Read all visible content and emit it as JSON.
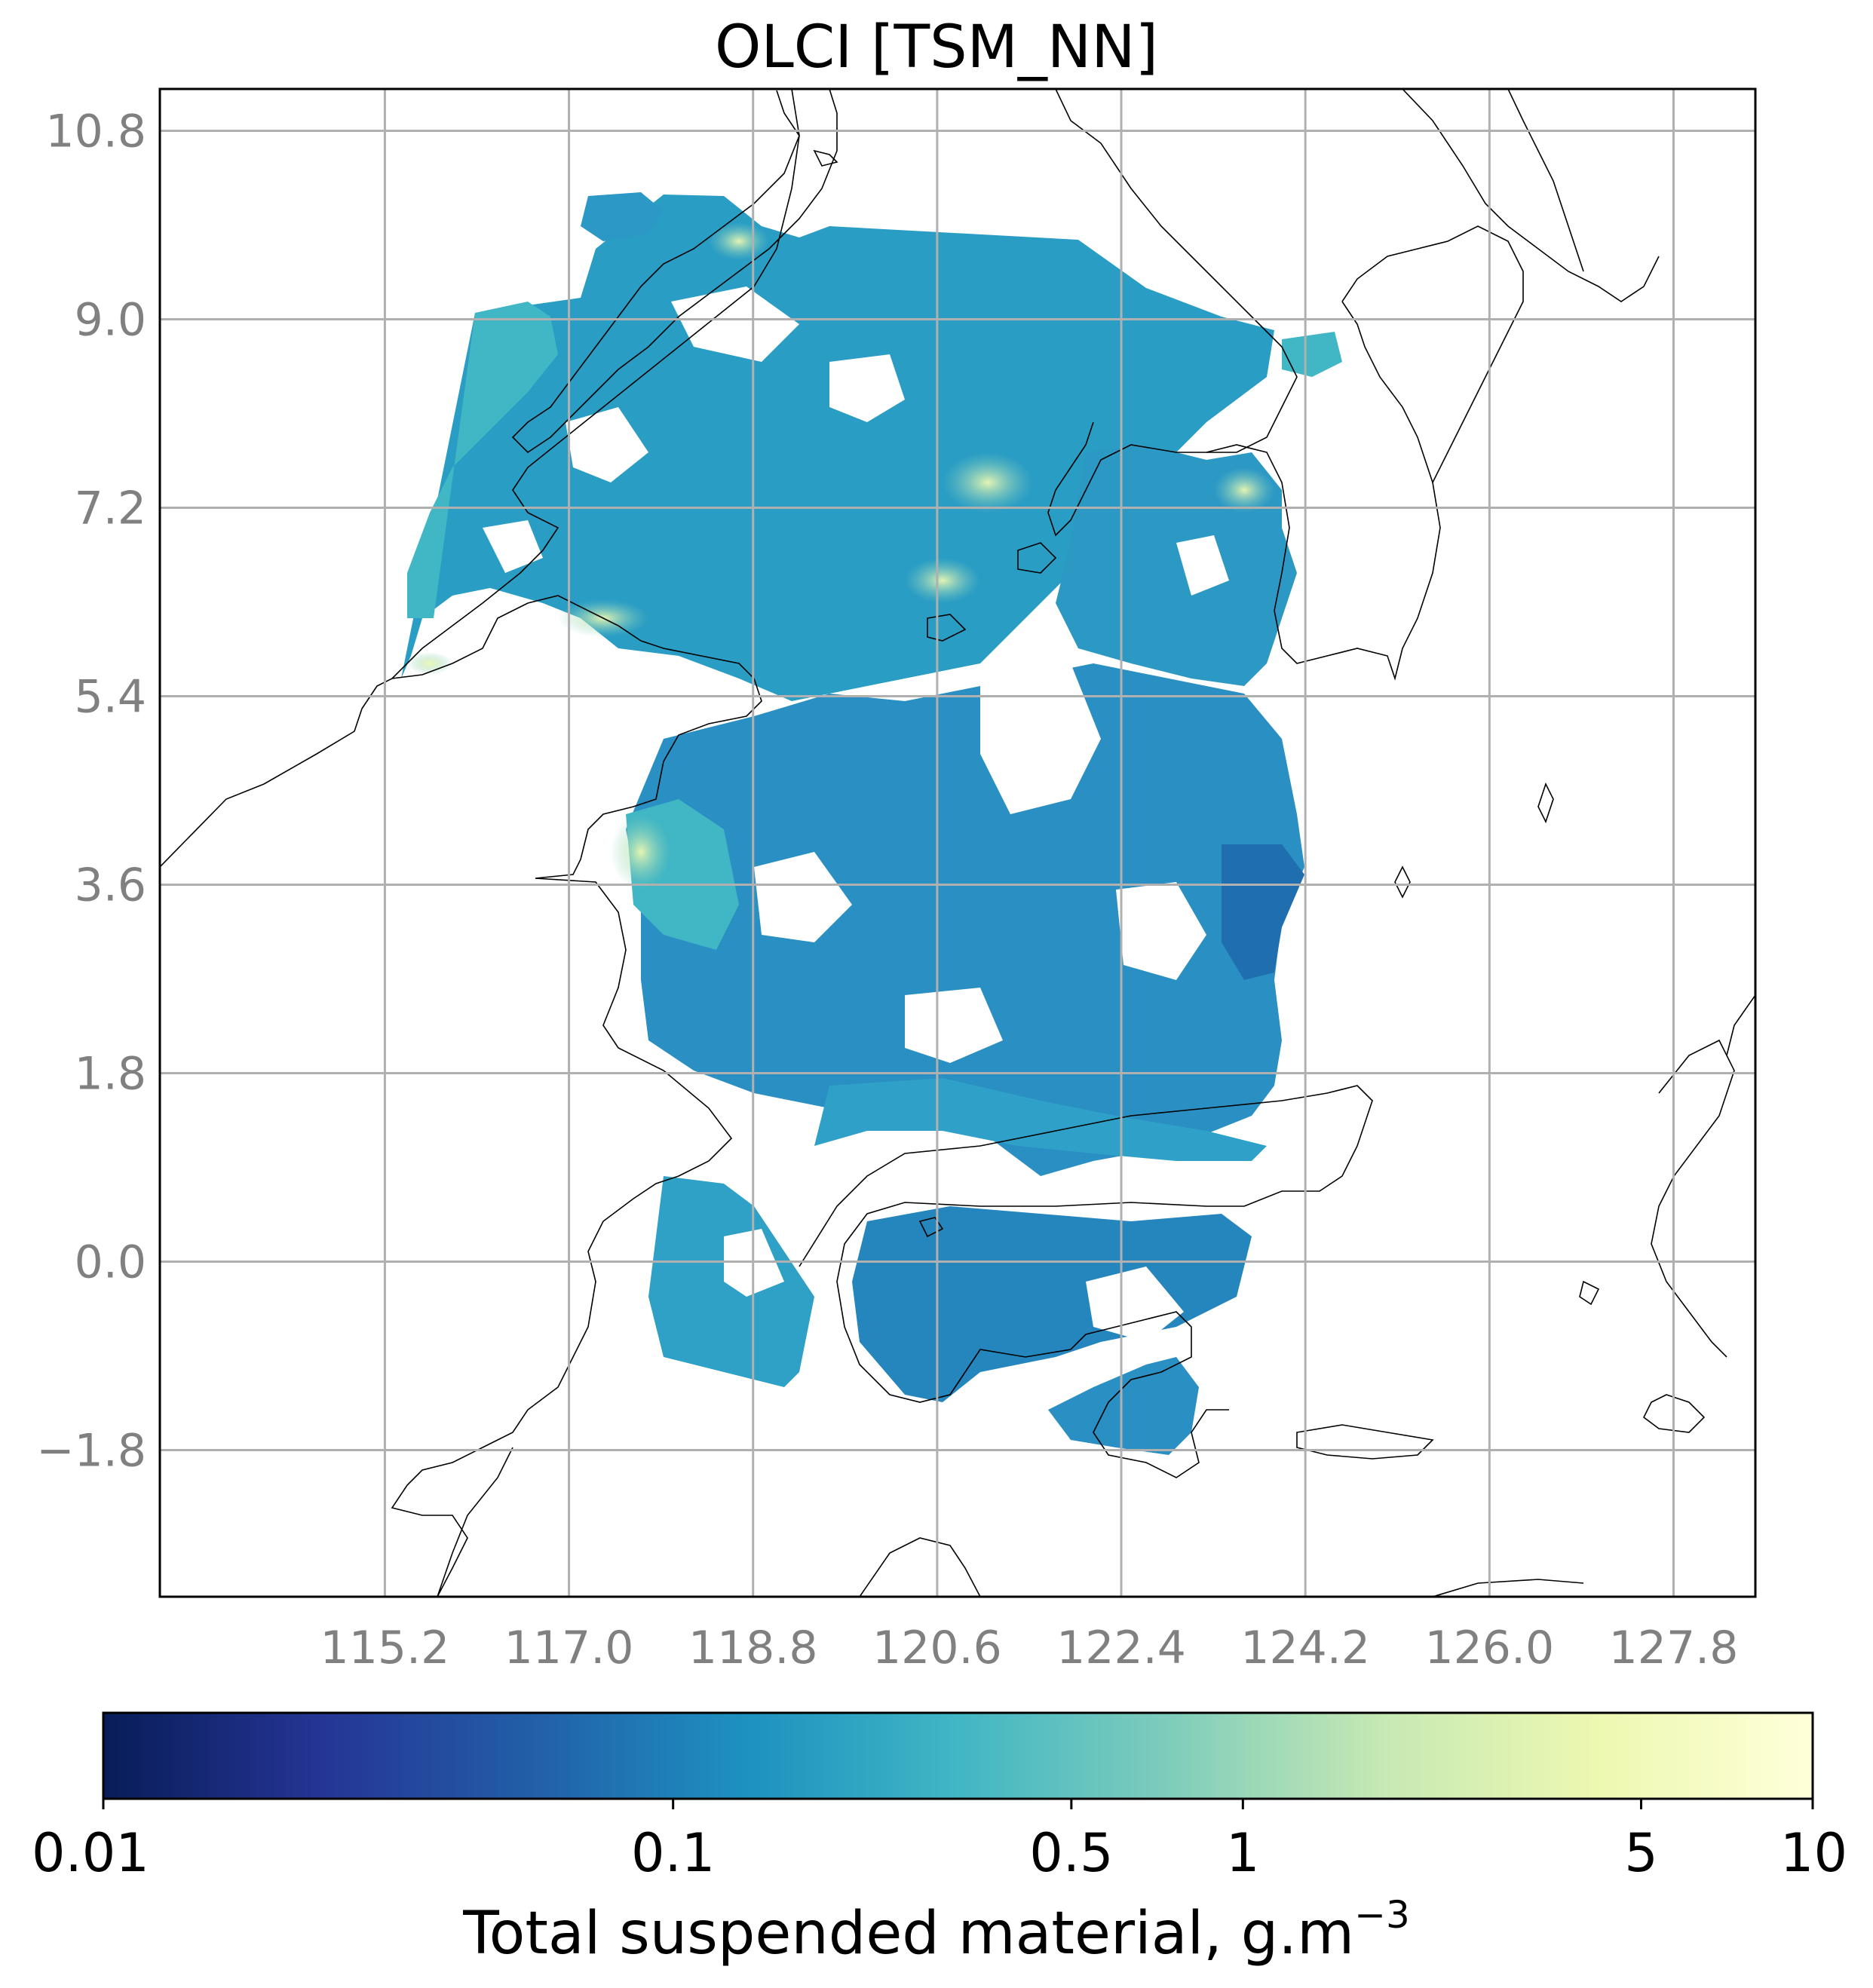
{
  "title": "OLCI [TSM_NN]",
  "map": {
    "lon_range": [
      113.0,
      128.6
    ],
    "lat_range": [
      -3.2,
      11.2
    ],
    "x_ticks": [
      "115.2",
      "117.0",
      "118.8",
      "120.6",
      "122.4",
      "124.2",
      "126.0",
      "127.8"
    ],
    "x_tick_values": [
      115.2,
      117.0,
      118.8,
      120.6,
      122.4,
      124.2,
      126.0,
      127.8
    ],
    "y_ticks": [
      "10.8",
      "9.0",
      "7.2",
      "5.4",
      "3.6",
      "1.8",
      "0.0",
      "−1.8"
    ],
    "y_tick_values": [
      10.8,
      9.0,
      7.2,
      5.4,
      3.6,
      1.8,
      0.0,
      -1.8
    ],
    "grid": true,
    "coastline_color": "#000000",
    "grid_color": "#b0b0b0"
  },
  "colorbar": {
    "colormap": "YlGnBu_r",
    "scale": "log",
    "range": [
      0.01,
      10
    ],
    "tick_labels": [
      "0.01",
      "0.1",
      "0.5",
      "1",
      "5",
      "10"
    ],
    "tick_values": [
      0.01,
      0.1,
      0.5,
      1,
      5,
      10
    ],
    "label_main": "Total suspended material, g.m",
    "label_exponent": "−3",
    "colors": [
      "#081d58",
      "#253494",
      "#225ea8",
      "#1d91c0",
      "#41b6c4",
      "#7fcdbb",
      "#c7e9b4",
      "#edf8b1",
      "#ffffd9"
    ]
  }
}
